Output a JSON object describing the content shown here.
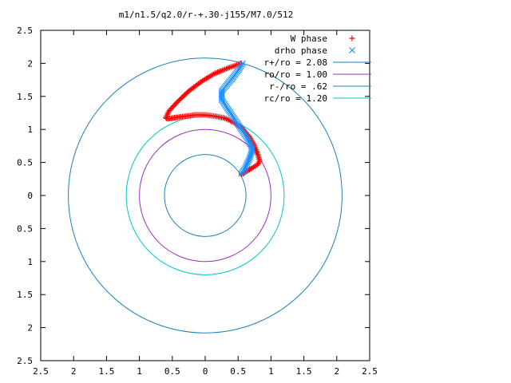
{
  "chart_data": {
    "type": "scatter",
    "title": "m1/n1.5/q2.0/r-+.30-j155/M7.0/512",
    "xlabel": "",
    "ylabel": "",
    "xlim": [
      -2.5,
      2.5
    ],
    "ylim": [
      -2.5,
      2.5
    ],
    "x_ticks": [
      -2.5,
      -2,
      -1.5,
      -1,
      -0.5,
      0,
      0.5,
      1,
      1.5,
      2,
      2.5
    ],
    "y_ticks": [
      -2.5,
      -2,
      -1.5,
      -1,
      -0.5,
      0,
      0.5,
      1,
      1.5,
      2,
      2.5
    ],
    "x_tick_labels": [
      "2.5",
      "2",
      "1.5",
      "1",
      "0.5",
      "0",
      "0.5",
      "1",
      "1.5",
      "2",
      "2.5"
    ],
    "y_tick_labels": [
      "2.5",
      "2",
      "1.5",
      "1",
      "0.5",
      "0",
      "0.5",
      "1",
      "1.5",
      "2",
      "2.5"
    ],
    "grid": false,
    "legend_position": "top-right",
    "series": [
      {
        "name": "W phase",
        "marker": "plus",
        "color": "#ff0000",
        "path_points": [
          [
            0.55,
            0.32
          ],
          [
            0.62,
            0.36
          ],
          [
            0.72,
            0.42
          ],
          [
            0.8,
            0.47
          ],
          [
            0.83,
            0.52
          ],
          [
            0.8,
            0.62
          ],
          [
            0.75,
            0.75
          ],
          [
            0.68,
            0.88
          ],
          [
            0.58,
            1.0
          ],
          [
            0.45,
            1.1
          ],
          [
            0.3,
            1.17
          ],
          [
            0.15,
            1.2
          ],
          [
            0.0,
            1.22
          ],
          [
            -0.15,
            1.22
          ],
          [
            -0.3,
            1.2
          ],
          [
            -0.45,
            1.18
          ],
          [
            -0.57,
            1.16
          ],
          [
            -0.6,
            1.17
          ],
          [
            -0.55,
            1.28
          ],
          [
            -0.42,
            1.42
          ],
          [
            -0.25,
            1.58
          ],
          [
            -0.05,
            1.73
          ],
          [
            0.15,
            1.85
          ],
          [
            0.35,
            1.93
          ],
          [
            0.55,
            2.0
          ]
        ],
        "n_points": 150
      },
      {
        "name": "drho phase",
        "marker": "cross",
        "color": "#1e90ff",
        "path_points": [
          [
            0.55,
            0.33
          ],
          [
            0.6,
            0.4
          ],
          [
            0.67,
            0.55
          ],
          [
            0.72,
            0.7
          ],
          [
            0.65,
            0.85
          ],
          [
            0.55,
            1.0
          ],
          [
            0.45,
            1.15
          ],
          [
            0.35,
            1.3
          ],
          [
            0.25,
            1.45
          ],
          [
            0.25,
            1.58
          ],
          [
            0.35,
            1.7
          ],
          [
            0.45,
            1.82
          ],
          [
            0.52,
            1.92
          ],
          [
            0.57,
            2.0
          ]
        ],
        "n_points": 80
      },
      {
        "name": "r+/ro = 2.08",
        "type": "circle",
        "radius": 2.08,
        "color": "#1f7fb8"
      },
      {
        "name": "ro/ro = 1.00",
        "type": "circle",
        "radius": 1.0,
        "color": "#9a2fc0"
      },
      {
        "name": "r-/ro = .62",
        "type": "circle",
        "radius": 0.62,
        "color": "#1f7fb8"
      },
      {
        "name": "rc/ro = 1.20",
        "type": "circle",
        "radius": 1.2,
        "color": "#00c8c8"
      }
    ]
  }
}
